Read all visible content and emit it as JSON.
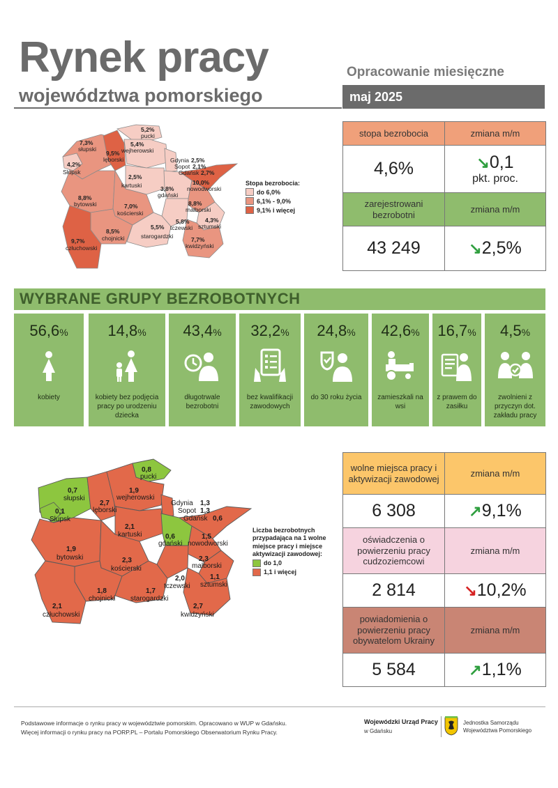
{
  "header": {
    "title": "Rynek pracy",
    "subtitle": "województwa pomorskiego",
    "report_type": "Opracowanie miesięczne",
    "month": "maj 2025"
  },
  "top_table": {
    "rate_header": "stopa bezrobocia",
    "change_header_1": "zmiana m/m",
    "rate_value": "4,6%",
    "rate_change": "0,1",
    "rate_change_unit": "pkt. proc.",
    "registered_header": "zarejestrowani bezrobotni",
    "change_header_2": "zmiana m/m",
    "registered_value": "43 249",
    "registered_change": "2,5%",
    "colors": {
      "orange": "#f0a07a",
      "green": "#8fbc6d"
    }
  },
  "map1": {
    "legend_title": "Stopa bezrobocia:",
    "legend": [
      "do 6,0%",
      "6,1% - 9,0%",
      "9,1% i więcej"
    ],
    "legend_colors": [
      "#f6cdc4",
      "#e99580",
      "#de6245"
    ],
    "labels": {
      "pucki": {
        "v": "5,2%",
        "n": "pucki"
      },
      "wejherowski": {
        "v": "5,4%",
        "n": "wejherowski"
      },
      "slupski": {
        "v": "7,3%",
        "n": "słupski"
      },
      "leborski": {
        "v": "9,5%",
        "n": "lęborski"
      },
      "slupsk": {
        "v": "4,2%",
        "n": "Słupsk"
      },
      "gdynia": {
        "n": "Gdynia",
        "v": "2,5%"
      },
      "sopot": {
        "n": "Sopot",
        "v": "2,1%"
      },
      "gdansk": {
        "n": "Gdańsk",
        "v": "2,7%"
      },
      "kartuski": {
        "v": "2,5%",
        "n": "kartuski"
      },
      "nowodworski": {
        "v": "10,0%",
        "n": "nowodworski"
      },
      "gdanski": {
        "v": "3,8%",
        "n": "gdański"
      },
      "bytowski": {
        "v": "8,8%",
        "n": "bytowski"
      },
      "koscierski": {
        "v": "7,0%",
        "n": "kościerski"
      },
      "malborski": {
        "v": "8,8%",
        "n": "malborski"
      },
      "tczewski": {
        "v": "5,8%",
        "n": "tczewski"
      },
      "sztumski": {
        "v": "4,3%",
        "n": "sztumski"
      },
      "chojnicki": {
        "v": "8,5%",
        "n": "chojnicki"
      },
      "starogardzki": {
        "v": "5,5%",
        "n": "starogardzki"
      },
      "czluchowski": {
        "v": "9,7%",
        "n": "człuchowski"
      },
      "kwidzynski": {
        "v": "7,7%",
        "n": "kwidzyński"
      }
    }
  },
  "groups": {
    "title": "WYBRANE GRUPY BEZROBOTNYCH",
    "color": "#8fbc6d",
    "cards": [
      {
        "value": "56,6",
        "unit": "%",
        "label": "kobiety",
        "icon": "woman-icon"
      },
      {
        "value": "14,8",
        "unit": "%",
        "label": "kobiety bez podjęcia pracy po urodzeniu dziecka",
        "icon": "mother-child-icon"
      },
      {
        "value": "43,4",
        "unit": "%",
        "label": "długotrwale bezrobotni",
        "icon": "clock-person-icon"
      },
      {
        "value": "32,2",
        "unit": "%",
        "label": "bez kwalifikacji zawodowych",
        "icon": "checklist-icon"
      },
      {
        "value": "24,8",
        "unit": "%",
        "label": "do 30 roku życia",
        "icon": "young-person-icon"
      },
      {
        "value": "42,6",
        "unit": "%",
        "label": "zamieszkali na wsi",
        "icon": "tractor-icon"
      },
      {
        "value": "16,7",
        "unit": "%",
        "label": "z prawem do zasiłku",
        "icon": "benefit-icon"
      },
      {
        "value": "4,5",
        "unit": "%",
        "label": "zwolnieni z przyczyn dot. zakładu pracy",
        "icon": "dismissed-icon"
      }
    ]
  },
  "map2": {
    "legend_title": "Liczba bezrobotnych przypadająca na 1 wolne miejsce pracy i miejsce aktywizacji zawodowej:",
    "legend": [
      "do 1,0",
      "1,1 i więcej"
    ],
    "legend_colors": [
      "#8dc63f",
      "#e2694a"
    ],
    "labels": {
      "pucki": {
        "v": "0,8",
        "n": "pucki"
      },
      "slupski": {
        "v": "0,7",
        "n": "słupski"
      },
      "wejherowski": {
        "v": "1,9",
        "n": "wejherowski"
      },
      "leborski": {
        "v": "2,7",
        "n": "lęborski"
      },
      "slupsk": {
        "v": "0,1",
        "n": "Słupsk"
      },
      "gdynia": {
        "n": "Gdynia",
        "v": "1,3"
      },
      "sopot": {
        "n": "Sopot",
        "v": "1,3"
      },
      "gdansk": {
        "n": "Gdańsk",
        "v": "0,6"
      },
      "kartuski": {
        "v": "2,1",
        "n": "kartuski"
      },
      "gdanski": {
        "v": "0,6",
        "n": "gdański"
      },
      "nowodworski": {
        "v": "1,5",
        "n": "nowodworski"
      },
      "bytowski": {
        "v": "1,9",
        "n": "bytowski"
      },
      "koscierski": {
        "v": "2,3",
        "n": "kościerski"
      },
      "malborski": {
        "v": "2,3",
        "n": "malborski"
      },
      "tczewski": {
        "v": "2,0",
        "n": "tczewski"
      },
      "sztumski": {
        "v": "1,1",
        "n": "sztumski"
      },
      "chojnicki": {
        "v": "1,8",
        "n": "chojnicki"
      },
      "starogardzki": {
        "v": "1,7",
        "n": "starogardzki"
      },
      "czluchowski": {
        "v": "2,1",
        "n": "człuchowski"
      },
      "kwidzynski": {
        "v": "2,7",
        "n": "kwidzyński"
      }
    }
  },
  "bottom_table": {
    "vacancies_header": "wolne miejsca pracy i aktywizacji zawodowej",
    "change_header_1": "zmiana m/m",
    "vacancies_value": "6 308",
    "vacancies_change": "9,1%",
    "declarations_header": "oświadczenia o powierzeniu pracy cudzoziemcowi",
    "change_header_2": "zmiana m/m",
    "declarations_value": "2 814",
    "declarations_change": "10,2%",
    "ukraine_header": "powiadomienia o powierzeniu pracy obywatelom Ukrainy",
    "change_header_3": "zmiana m/m",
    "ukraine_value": "5 584",
    "ukraine_change": "1,1%",
    "colors": {
      "yellow": "#fcc66a",
      "pink": "#f6d3df",
      "brown": "#c98574"
    }
  },
  "footer": {
    "line1": "Podstawowe informacje o rynku pracy w województwie pomorskim. Opracowano w WUP w Gdańsku.",
    "line2": "Więcej informacji o rynku pracy na PORP.PL – Portalu Pomorskiego Obserwatorium Rynku Pracy.",
    "wup_name": "Wojewódzki Urząd Pracy",
    "wup_city": "w Gdańsku",
    "jst_line1": "Jednostka Samorządu",
    "jst_line2": "Województwa Pomorskiego"
  }
}
